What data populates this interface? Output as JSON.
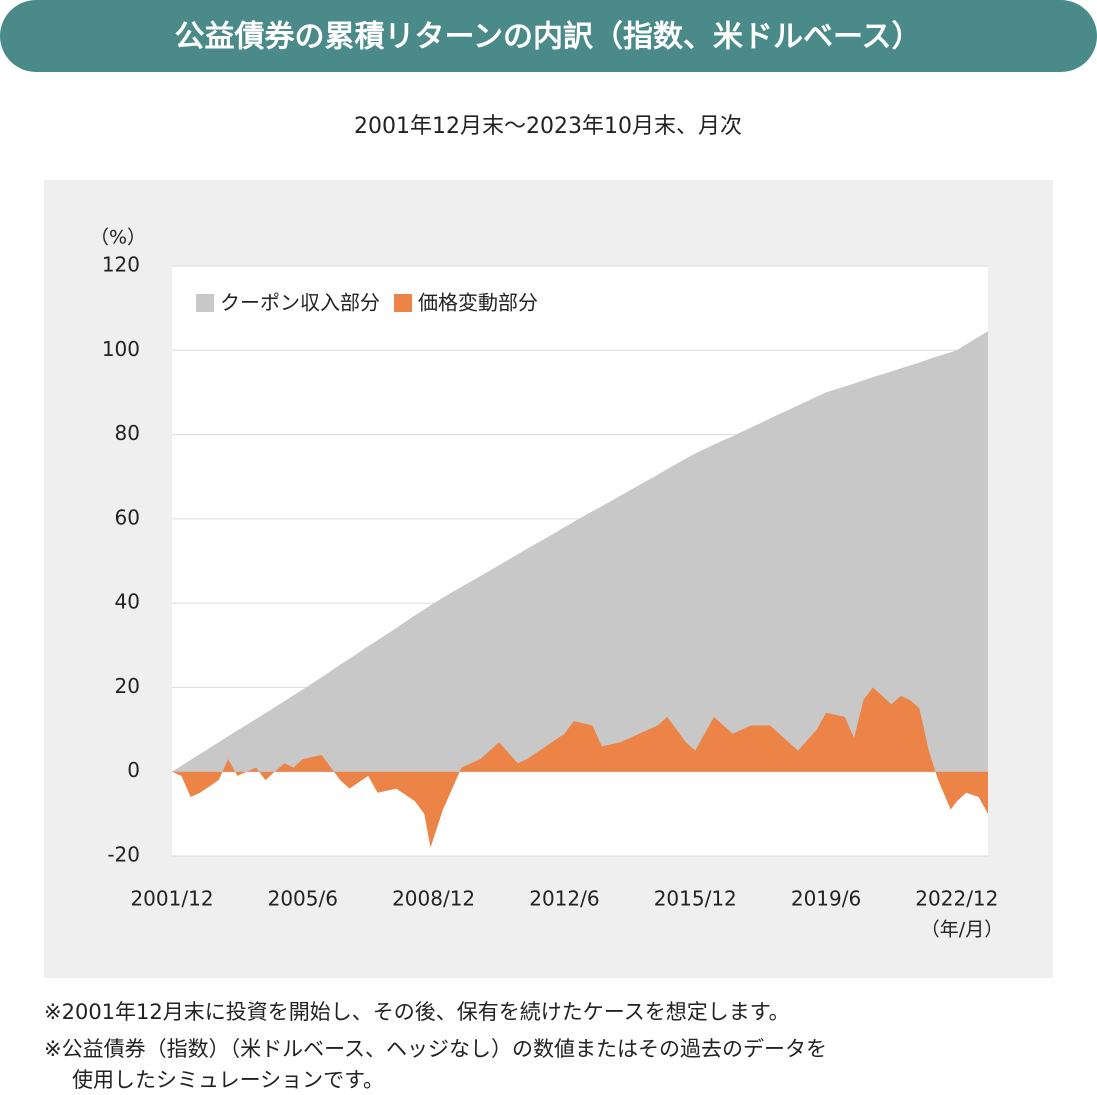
{
  "chart_data": {
    "type": "area",
    "title": "公益債券の累積リターンの内訳（指数、米ドルベース）",
    "subtitle": "2001年12月末～2023年10月末、月次",
    "y_label": "（%）",
    "x_label": "（年/月）",
    "x": [
      "2001/12",
      "2002/3",
      "2002/6",
      "2002/9",
      "2003/3",
      "2003/6",
      "2003/9",
      "2004/3",
      "2004/6",
      "2004/12",
      "2005/3",
      "2005/6",
      "2005/12",
      "2006/6",
      "2006/9",
      "2007/3",
      "2007/6",
      "2007/12",
      "2008/6",
      "2008/9",
      "2008/11",
      "2009/3",
      "2009/9",
      "2010/3",
      "2010/9",
      "2011/3",
      "2011/6",
      "2011/12",
      "2012/6",
      "2012/9",
      "2013/3",
      "2013/6",
      "2013/12",
      "2014/6",
      "2014/12",
      "2015/3",
      "2015/9",
      "2015/12",
      "2016/6",
      "2016/12",
      "2017/6",
      "2017/12",
      "2018/6",
      "2018/9",
      "2019/3",
      "2019/6",
      "2019/12",
      "2020/3",
      "2020/6",
      "2020/9",
      "2021/3",
      "2021/6",
      "2021/9",
      "2021/12",
      "2022/3",
      "2022/6",
      "2022/10",
      "2022/12",
      "2023/3",
      "2023/7",
      "2023/10"
    ],
    "series": [
      {
        "name": "クーポン収入部分",
        "color": "#c8c8c8",
        "values": [
          0,
          1.4,
          2.8,
          4.2,
          7.0,
          8.4,
          9.8,
          12.5,
          13.9,
          16.7,
          18.1,
          19.5,
          22.4,
          25.4,
          26.8,
          29.8,
          31.2,
          34.1,
          37.1,
          38.5,
          39.5,
          41.3,
          43.9,
          46.4,
          49.0,
          51.6,
          52.9,
          55.4,
          58,
          59.3,
          61.8,
          63.0,
          65.5,
          68.0,
          70.5,
          71.8,
          74.3,
          75.5,
          77.6,
          79.6,
          81.7,
          83.8,
          85.9,
          86.9,
          89.0,
          90,
          91.4,
          92.1,
          92.9,
          93.6,
          95.0,
          95.7,
          96.4,
          97.1,
          97.9,
          98.6,
          99.5,
          100,
          101.4,
          103.2,
          104.5
        ]
      },
      {
        "name": "価格変動部分",
        "color": "#ec8447",
        "values": [
          0,
          -1,
          -6,
          -5,
          -2,
          3,
          -1,
          1,
          -2,
          2,
          1,
          3,
          4,
          -2,
          -4,
          -1,
          -5,
          -4,
          -7,
          -10,
          -18,
          -9,
          1,
          3,
          7,
          2,
          3,
          6,
          9,
          12,
          11,
          6,
          7,
          9,
          11,
          13,
          7,
          5,
          13,
          9,
          11,
          11,
          7,
          5,
          10,
          14,
          13,
          8,
          17,
          20,
          16,
          18,
          17,
          15,
          5,
          -2,
          -9,
          -7,
          -5,
          -6,
          -10
        ]
      }
    ],
    "xlim": [
      "2001/12",
      "2023/10"
    ],
    "xticks": [
      "2001/12",
      "2005/6",
      "2008/12",
      "2012/6",
      "2015/12",
      "2019/6",
      "2022/12"
    ],
    "ylim": [
      -20,
      120
    ],
    "yticks": [
      -20,
      0,
      20,
      40,
      60,
      80,
      100,
      120
    ],
    "grid": true,
    "legend": "top-left",
    "notes": [
      "※2001年12月末に投資を開始し、その後、保有を続けたケースを想定します。",
      "※公益債券（指数）（米ドルベース、ヘッジなし）の数値またはその過去のデータを",
      "使用したシミュレーションです。"
    ]
  }
}
